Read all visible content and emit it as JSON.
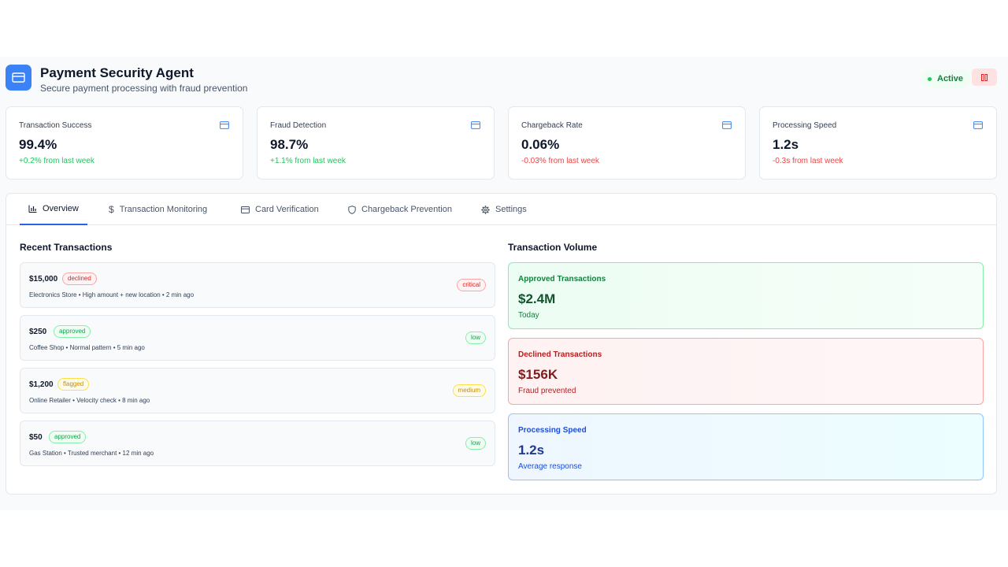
{
  "header": {
    "title": "Payment Security Agent",
    "subtitle": "Secure payment processing with fraud prevention",
    "status": "Active"
  },
  "stats": [
    {
      "label": "Transaction Success",
      "value": "99.4%",
      "change": "+0.2% from last week"
    },
    {
      "label": "Fraud Detection",
      "value": "98.7%",
      "change": "+1.1% from last week"
    },
    {
      "label": "Chargeback Rate",
      "value": "0.06%",
      "change": "-0.03% from last week"
    },
    {
      "label": "Processing Speed",
      "value": "1.2s",
      "change": "-0.3s from last week"
    }
  ],
  "tabs": [
    {
      "label": "Overview",
      "icon": "bar-chart-icon"
    },
    {
      "label": "Transaction Monitoring",
      "icon": "dollar-icon"
    },
    {
      "label": "Card Verification",
      "icon": "credit-card-icon"
    },
    {
      "label": "Chargeback Prevention",
      "icon": "shield-icon"
    },
    {
      "label": "Settings",
      "icon": "gear-icon"
    }
  ],
  "recent": {
    "title": "Recent Transactions",
    "items": [
      {
        "amount": "$15,000",
        "status": "declined",
        "desc": "Electronics Store • High amount + new location • 2 min ago",
        "risk": "critical"
      },
      {
        "amount": "$250",
        "status": "approved",
        "desc": "Coffee Shop • Normal pattern • 5 min ago",
        "risk": "low"
      },
      {
        "amount": "$1,200",
        "status": "flagged",
        "desc": "Online Retailer • Velocity check • 8 min ago",
        "risk": "medium"
      },
      {
        "amount": "$50",
        "status": "approved",
        "desc": "Gas Station • Trusted merchant • 12 min ago",
        "risk": "low"
      }
    ]
  },
  "volume": {
    "title": "Transaction Volume",
    "cards": [
      {
        "label": "Approved Transactions",
        "value": "$2.4M",
        "sub": "Today"
      },
      {
        "label": "Declined Transactions",
        "value": "$156K",
        "sub": "Fraud prevented"
      },
      {
        "label": "Processing Speed",
        "value": "1.2s",
        "sub": "Average response"
      }
    ]
  },
  "colors": {
    "accent": "#2563eb",
    "logo": "#3b82f6",
    "success": "#22c55e",
    "danger": "#ef4444"
  }
}
